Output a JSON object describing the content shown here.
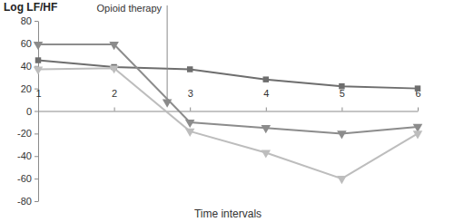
{
  "chart_data": {
    "type": "line",
    "y_label": "Log LF/HF",
    "x_label": "Time intervals",
    "x": [
      1,
      2,
      3,
      4,
      5,
      6
    ],
    "series": [
      {
        "color": "#6e6e6e",
        "marker": "square",
        "values": [
          45,
          39,
          37,
          28,
          22,
          20
        ]
      },
      {
        "color": "#8c8c8c",
        "marker": "triangle-down",
        "values": [
          59,
          59,
          -10,
          -15,
          -20,
          -14
        ]
      },
      {
        "color": "#bdbdbd",
        "marker": "triangle-down",
        "values": [
          37,
          38,
          -18,
          -37,
          -60,
          -20
        ]
      }
    ],
    "xlim": [
      1,
      6
    ],
    "xticks": [
      1,
      2,
      3,
      4,
      5,
      6
    ],
    "ylim": [
      -80,
      80
    ],
    "yticks": [
      -80,
      -60,
      -40,
      -20,
      0,
      20,
      40,
      60,
      80
    ],
    "grid": false,
    "annotations": [
      {
        "text": "Opioid therapy",
        "x": 2.7,
        "y": 8
      }
    ]
  }
}
